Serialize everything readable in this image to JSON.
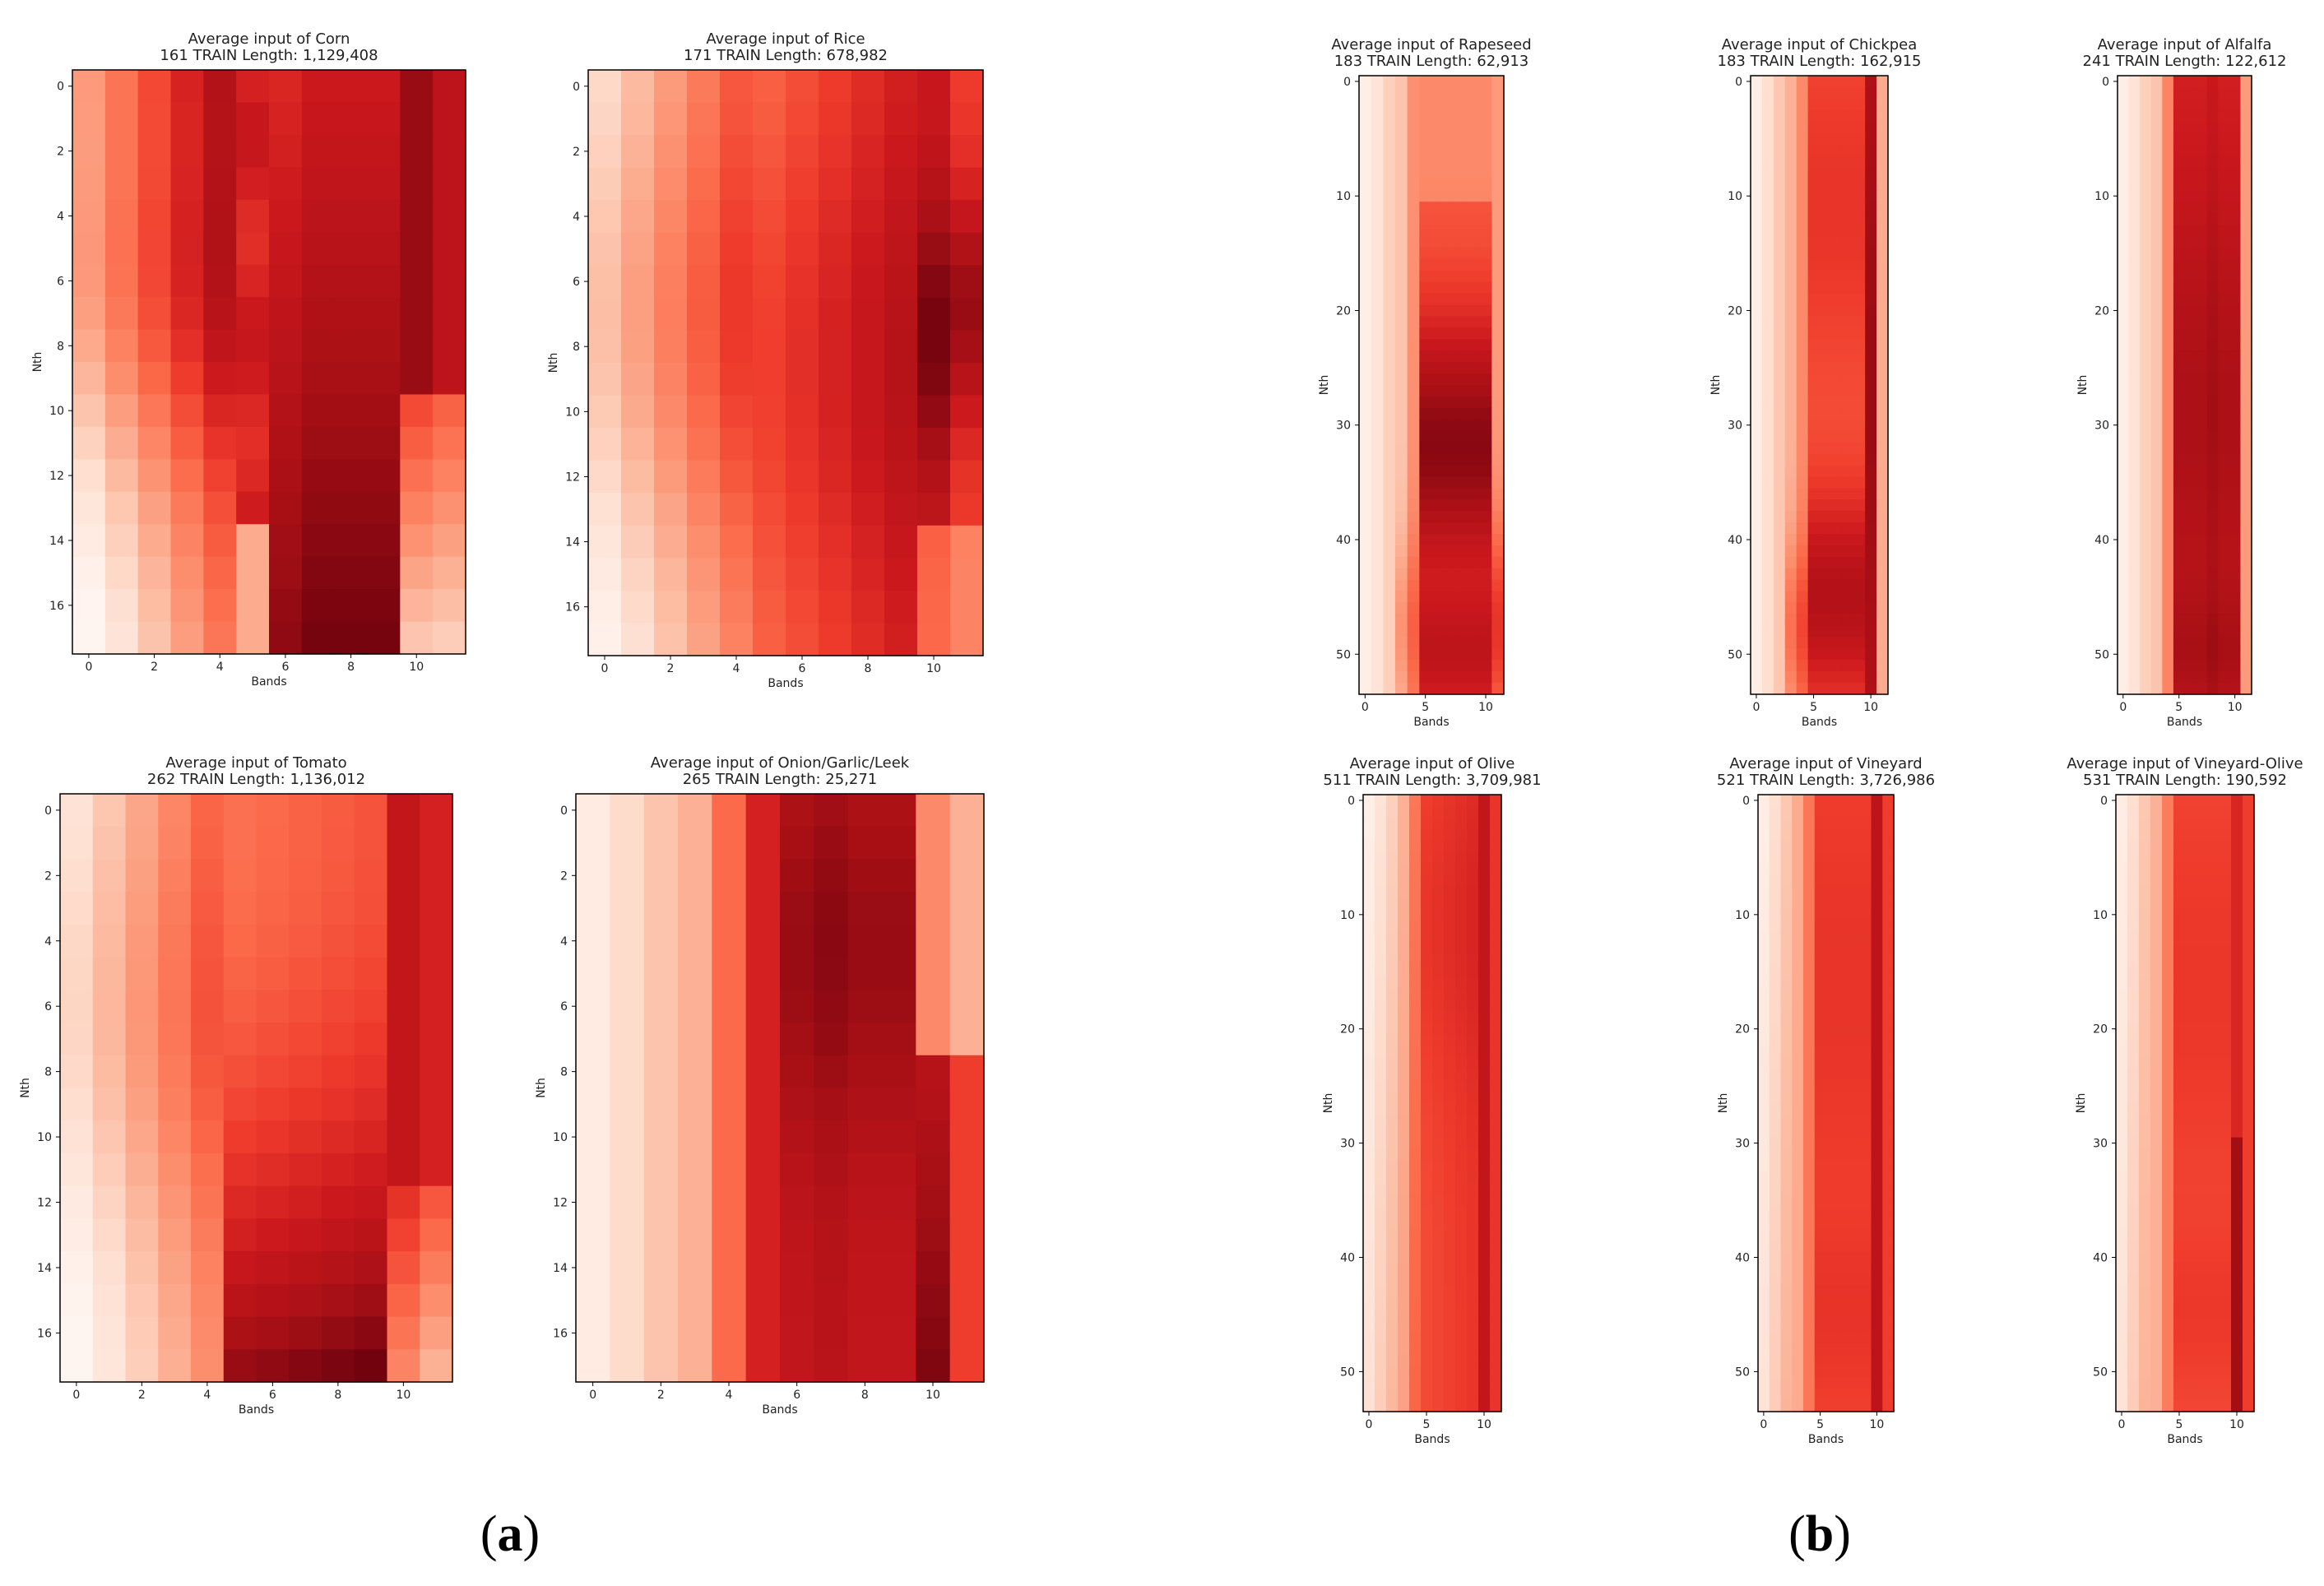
{
  "panel_labels": {
    "a": {
      "open": "(",
      "letter": "a",
      "close": ")"
    },
    "b": {
      "open": "(",
      "letter": "b",
      "close": ")"
    }
  },
  "chart_data": [
    {
      "type": "heatmap",
      "panel": "a",
      "title": [
        "Average input of Corn",
        "161 TRAIN Length: 1,129,408"
      ],
      "xlabel": "Bands",
      "ylabel": "Nth",
      "cols": 12,
      "rows": 18,
      "shape": "corn",
      "xticks": [
        0,
        2,
        4,
        6,
        8,
        10
      ],
      "yticks": [
        0,
        2,
        4,
        6,
        8,
        10,
        12,
        14,
        16
      ]
    },
    {
      "type": "heatmap",
      "panel": "a",
      "title": [
        "Average input of Rice",
        "171 TRAIN Length: 678,982"
      ],
      "xlabel": "Bands",
      "ylabel": "Nth",
      "cols": 12,
      "rows": 18,
      "shape": "rice",
      "xticks": [
        0,
        2,
        4,
        6,
        8,
        10
      ],
      "yticks": [
        0,
        2,
        4,
        6,
        8,
        10,
        12,
        14,
        16
      ]
    },
    {
      "type": "heatmap",
      "panel": "a",
      "title": [
        "Average input of Tomato",
        "262 TRAIN Length: 1,136,012"
      ],
      "xlabel": "Bands",
      "ylabel": "Nth",
      "cols": 12,
      "rows": 18,
      "shape": "tomato",
      "xticks": [
        0,
        2,
        4,
        6,
        8,
        10
      ],
      "yticks": [
        0,
        2,
        4,
        6,
        8,
        10,
        12,
        14,
        16
      ]
    },
    {
      "type": "heatmap",
      "panel": "a",
      "title": [
        "Average input of Onion/Garlic/Leek",
        "265 TRAIN Length: 25,271"
      ],
      "xlabel": "Bands",
      "ylabel": "Nth",
      "cols": 12,
      "rows": 18,
      "shape": "onion",
      "xticks": [
        0,
        2,
        4,
        6,
        8,
        10
      ],
      "yticks": [
        0,
        2,
        4,
        6,
        8,
        10,
        12,
        14,
        16
      ]
    },
    {
      "type": "heatmap",
      "panel": "b",
      "title": [
        "Average input of Rapeseed",
        "183 TRAIN Length: 62,913"
      ],
      "xlabel": "Bands",
      "ylabel": "Nth",
      "cols": 12,
      "rows": 54,
      "shape": "rapeseed",
      "xticks": [
        0,
        5,
        10
      ],
      "yticks": [
        0,
        10,
        20,
        30,
        40,
        50
      ]
    },
    {
      "type": "heatmap",
      "panel": "b",
      "title": [
        "Average input of Chickpea",
        "183 TRAIN Length: 162,915"
      ],
      "xlabel": "Bands",
      "ylabel": "Nth",
      "cols": 12,
      "rows": 54,
      "shape": "chickpea",
      "xticks": [
        0,
        5,
        10
      ],
      "yticks": [
        0,
        10,
        20,
        30,
        40,
        50
      ]
    },
    {
      "type": "heatmap",
      "panel": "b",
      "title": [
        "Average input of Alfalfa",
        "241 TRAIN Length: 122,612"
      ],
      "xlabel": "Bands",
      "ylabel": "Nth",
      "cols": 12,
      "rows": 54,
      "shape": "alfalfa",
      "xticks": [
        0,
        5,
        10
      ],
      "yticks": [
        0,
        10,
        20,
        30,
        40,
        50
      ]
    },
    {
      "type": "heatmap",
      "panel": "b",
      "title": [
        "Average input of Olive",
        "511 TRAIN Length: 3,709,981"
      ],
      "xlabel": "Bands",
      "ylabel": "Nth",
      "cols": 12,
      "rows": 54,
      "shape": "olive",
      "xticks": [
        0,
        5,
        10
      ],
      "yticks": [
        0,
        10,
        20,
        30,
        40,
        50
      ]
    },
    {
      "type": "heatmap",
      "panel": "b",
      "title": [
        "Average input of Vineyard",
        "521 TRAIN Length: 3,726,986"
      ],
      "xlabel": "Bands",
      "ylabel": "Nth",
      "cols": 12,
      "rows": 54,
      "shape": "vineyard",
      "xticks": [
        0,
        5,
        10
      ],
      "yticks": [
        0,
        10,
        20,
        30,
        40,
        50
      ]
    },
    {
      "type": "heatmap",
      "panel": "b",
      "title": [
        "Average input of Vineyard-Olive",
        "531 TRAIN Length: 190,592"
      ],
      "xlabel": "Bands",
      "ylabel": "Nth",
      "cols": 12,
      "rows": 54,
      "shape": "vineyard_olive",
      "xticks": [
        0,
        5,
        10
      ],
      "yticks": [
        0,
        10,
        20,
        30,
        40,
        50
      ]
    }
  ]
}
